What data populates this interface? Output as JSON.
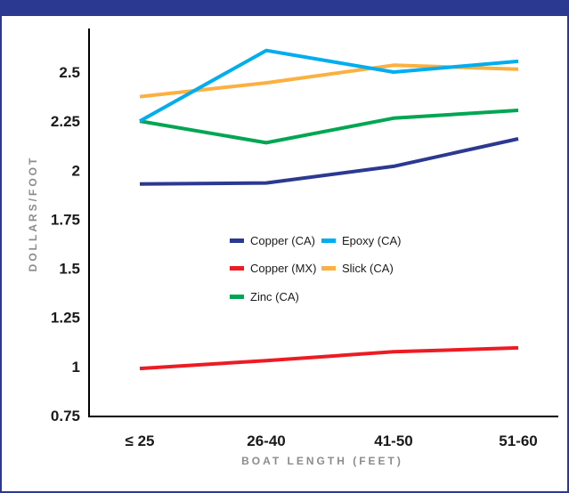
{
  "chart_data": {
    "type": "line",
    "title": "",
    "xlabel": "BOAT LENGTH (FEET)",
    "ylabel": "DOLLARS/FOOT",
    "categories": [
      "≤ 25",
      "26-40",
      "41-50",
      "51-60"
    ],
    "ylim": [
      0.75,
      2.75
    ],
    "yticks": [
      0.75,
      1,
      1.25,
      1.5,
      1.75,
      2,
      2.25,
      2.5
    ],
    "ytick_labels": [
      "0.75",
      "1",
      "1.25",
      "1.5",
      "1.75",
      "2",
      "2.25",
      "2.5"
    ],
    "grid": false,
    "legend_position": "center",
    "series": [
      {
        "name": "Copper (CA)",
        "color": "#2b3990",
        "values": [
          1.93,
          1.935,
          2.02,
          2.16
        ]
      },
      {
        "name": "Epoxy (CA)",
        "color": "#00aeef",
        "values": [
          2.25,
          2.61,
          2.5,
          2.555
        ]
      },
      {
        "name": "Copper (MX)",
        "color": "#ed1c24",
        "values": [
          0.99,
          1.03,
          1.075,
          1.095
        ]
      },
      {
        "name": "Slick (CA)",
        "color": "#fbb040",
        "values": [
          2.375,
          2.445,
          2.535,
          2.515
        ]
      },
      {
        "name": "Zinc (CA)",
        "color": "#00a651",
        "values": [
          2.25,
          2.14,
          2.265,
          2.305
        ]
      }
    ]
  }
}
